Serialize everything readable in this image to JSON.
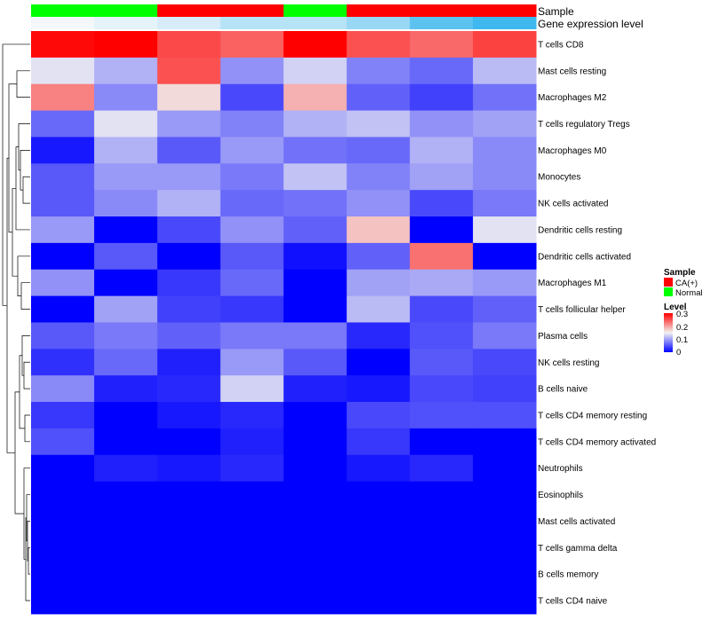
{
  "chart_data": {
    "type": "heatmap",
    "title": "",
    "annotations": {
      "sample_label": "Sample",
      "expression_label": "Gene expression level",
      "sample_groups": [
        "Normal",
        "Normal",
        "CA(+)",
        "CA(+)",
        "Normal",
        "CA(+)",
        "CA(+)",
        "CA(+)"
      ],
      "expression_levels": [
        0.0,
        0.05,
        0.1,
        0.2,
        0.2,
        0.3,
        0.5,
        0.6
      ]
    },
    "rows": [
      "T cells CD8",
      "Mast cells resting",
      "Macrophages M2",
      "T cells regulatory  Tregs",
      "Macrophages M0",
      "Monocytes",
      "NK cells activated",
      "Dendritic cells resting",
      "Dendritic cells activated",
      "Macrophages M1",
      "T cells follicular helper",
      "Plasma cells",
      "NK cells resting",
      "B cells naive",
      "T cells CD4 memory resting",
      "T cells CD4 memory activated",
      "Neutrophils",
      "Eosinophils",
      "Mast cells activated",
      "T cells gamma delta",
      "B cells memory",
      "T cells CD4 naive"
    ],
    "values": [
      [
        0.295,
        0.3,
        0.255,
        0.24,
        0.3,
        0.25,
        0.235,
        0.26
      ],
      [
        0.14,
        0.11,
        0.25,
        0.09,
        0.13,
        0.08,
        0.065,
        0.115
      ],
      [
        0.22,
        0.085,
        0.165,
        0.045,
        0.19,
        0.06,
        0.04,
        0.07
      ],
      [
        0.065,
        0.14,
        0.095,
        0.08,
        0.11,
        0.12,
        0.09,
        0.1
      ],
      [
        0.015,
        0.11,
        0.055,
        0.095,
        0.07,
        0.065,
        0.11,
        0.085
      ],
      [
        0.055,
        0.095,
        0.095,
        0.075,
        0.12,
        0.08,
        0.1,
        0.085
      ],
      [
        0.055,
        0.085,
        0.11,
        0.065,
        0.07,
        0.09,
        0.045,
        0.075
      ],
      [
        0.095,
        0.0,
        0.045,
        0.09,
        0.06,
        0.18,
        0.0,
        0.14
      ],
      [
        0.0,
        0.055,
        0.0,
        0.055,
        0.01,
        0.06,
        0.23,
        0.0
      ],
      [
        0.09,
        0.0,
        0.035,
        0.065,
        0.0,
        0.1,
        0.105,
        0.095
      ],
      [
        0.0,
        0.1,
        0.04,
        0.035,
        0.0,
        0.115,
        0.045,
        0.06
      ],
      [
        0.055,
        0.075,
        0.06,
        0.075,
        0.075,
        0.025,
        0.05,
        0.075
      ],
      [
        0.03,
        0.065,
        0.02,
        0.095,
        0.055,
        0.0,
        0.055,
        0.045
      ],
      [
        0.085,
        0.02,
        0.025,
        0.13,
        0.02,
        0.015,
        0.045,
        0.04
      ],
      [
        0.035,
        0.0,
        0.015,
        0.025,
        0.0,
        0.045,
        0.05,
        0.05
      ],
      [
        0.05,
        0.0,
        0.0,
        0.02,
        0.0,
        0.035,
        0.0,
        0.0
      ],
      [
        0.0,
        0.02,
        0.015,
        0.025,
        0.0,
        0.015,
        0.025,
        0.0
      ],
      [
        0.0,
        0.0,
        0.0,
        0.0,
        0.0,
        0.0,
        0.0,
        0.0
      ],
      [
        0.0,
        0.0,
        0.0,
        0.0,
        0.0,
        0.0,
        0.0,
        0.0
      ],
      [
        0.0,
        0.0,
        0.0,
        0.0,
        0.0,
        0.0,
        0.0,
        0.0
      ],
      [
        0.0,
        0.0,
        0.0,
        0.0,
        0.0,
        0.0,
        0.0,
        0.0
      ],
      [
        0.0,
        0.0,
        0.0,
        0.0,
        0.0,
        0.0,
        0.0,
        0.0
      ]
    ],
    "color_scale": {
      "min": 0,
      "mid": 0.15,
      "max": 0.3,
      "low_color": "#0000ff",
      "mid_color": "#f2f2f2",
      "high_color": "#ff0000"
    },
    "legend": {
      "sample_title": "Sample",
      "sample_entries": [
        {
          "label": "CA(+)",
          "color": "#ff0000"
        },
        {
          "label": "Normal",
          "color": "#00ff00"
        }
      ],
      "level_title": "Level",
      "level_ticks": [
        "0.3",
        "0.2",
        "0.1",
        "0"
      ],
      "placement": "right"
    },
    "row_dendrogram": true,
    "column_dendrogram": false
  },
  "colors": {
    "sample_CA": "#ff0000",
    "sample_Normal": "#00ff00",
    "expr_low": "#f4f8fb",
    "expr_high": "#3eb8ef"
  }
}
